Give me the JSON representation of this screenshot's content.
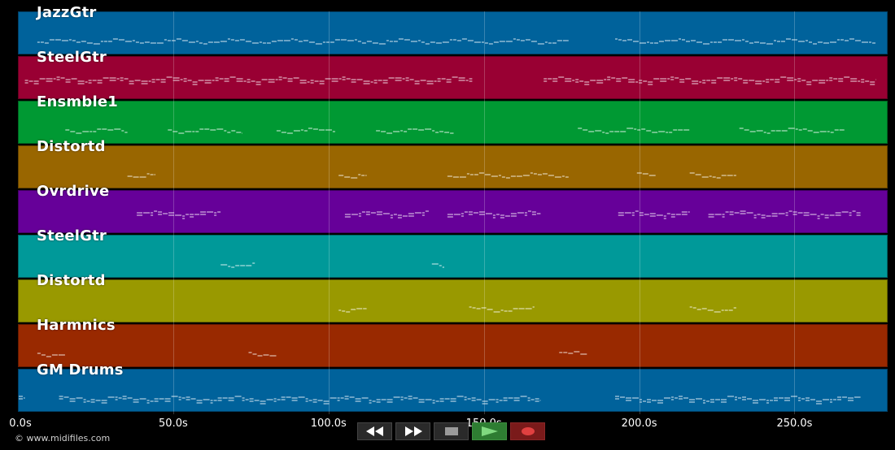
{
  "timeline": {
    "max_seconds": 280,
    "ticks": [
      {
        "value": 0,
        "label": "0.0s"
      },
      {
        "value": 50,
        "label": "50.0s"
      },
      {
        "value": 100,
        "label": "100.0s"
      },
      {
        "value": 150,
        "label": "150.0s"
      },
      {
        "value": 200,
        "label": "200.0s"
      },
      {
        "value": 250,
        "label": "250.0s"
      }
    ]
  },
  "tracks": [
    {
      "name": "JazzGtr",
      "color": "#00629b",
      "segments": [
        [
          6,
          177
        ],
        [
          192,
          276
        ]
      ]
    },
    {
      "name": "SteelGtr",
      "color": "#990033",
      "segments": [
        [
          2,
          146
        ],
        [
          169,
          276
        ]
      ]
    },
    {
      "name": "Ensmble1",
      "color": "#009933",
      "segments": [
        [
          15,
          35
        ],
        [
          48,
          72
        ],
        [
          83,
          102
        ],
        [
          115,
          140
        ],
        [
          180,
          216
        ],
        [
          232,
          266
        ]
      ]
    },
    {
      "name": "Distortd",
      "color": "#996600",
      "segments": [
        [
          35,
          44
        ],
        [
          103,
          112
        ],
        [
          138,
          177
        ],
        [
          199,
          205
        ],
        [
          216,
          231
        ]
      ]
    },
    {
      "name": "Ovrdrive",
      "color": "#660099",
      "segments": [
        [
          38,
          65
        ],
        [
          105,
          132
        ],
        [
          138,
          168
        ],
        [
          193,
          216
        ],
        [
          222,
          271
        ]
      ]
    },
    {
      "name": "SteelGtr",
      "color": "#009999",
      "segments": [
        [
          65,
          76
        ],
        [
          133,
          137
        ]
      ]
    },
    {
      "name": "Distortd",
      "color": "#999900",
      "segments": [
        [
          103,
          112
        ],
        [
          145,
          166
        ],
        [
          216,
          231
        ]
      ]
    },
    {
      "name": "Harmnics",
      "color": "#992900",
      "segments": [
        [
          6,
          15
        ],
        [
          74,
          83
        ],
        [
          174,
          183
        ]
      ]
    },
    {
      "name": "GM Drums",
      "color": "#00629b",
      "segments": [
        [
          0,
          2
        ],
        [
          13,
          168
        ],
        [
          192,
          271
        ]
      ]
    }
  ],
  "footer": {
    "copyright": "© www.midifiles.com"
  },
  "transport": {
    "rewind": "rewind-icon",
    "fast_forward": "fast-forward-icon",
    "stop": "stop-icon",
    "play": "play-icon",
    "record": "record-icon"
  }
}
